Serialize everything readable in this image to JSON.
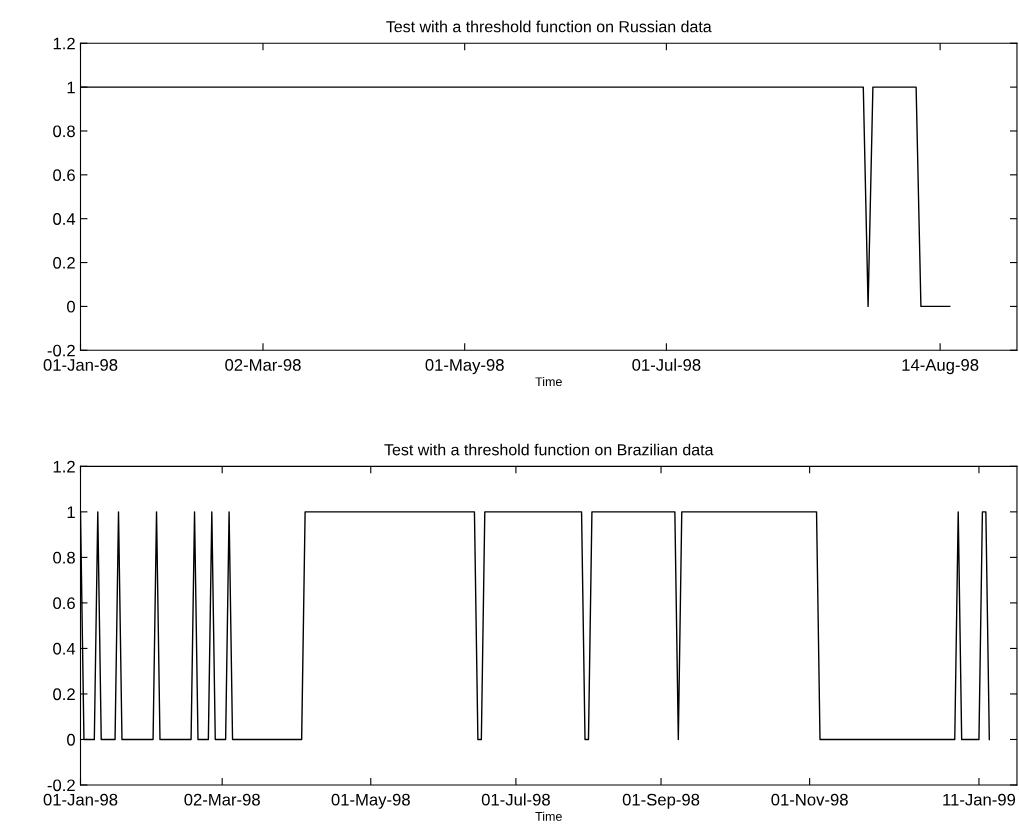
{
  "chart_data": [
    {
      "type": "line",
      "title": "Test with a threshold function on Russian data",
      "xlabel": "Time",
      "categories": [
        "01-Jan-98",
        null,
        null,
        null,
        null,
        null,
        null,
        null,
        null,
        null,
        null,
        null,
        null,
        null,
        null,
        null,
        null,
        null,
        null,
        null,
        null,
        null,
        null,
        null,
        null,
        null,
        null,
        null,
        null,
        null,
        null,
        null,
        null,
        null,
        null,
        null,
        null,
        null,
        "02-Mar-98",
        null,
        null,
        null,
        null,
        null,
        null,
        null,
        null,
        null,
        null,
        null,
        null,
        null,
        null,
        null,
        null,
        null,
        null,
        null,
        null,
        null,
        null,
        null,
        null,
        null,
        null,
        null,
        null,
        null,
        null,
        null,
        null,
        null,
        null,
        null,
        null,
        null,
        null,
        null,
        null,
        null,
        "01-May-98",
        null,
        null,
        null,
        null,
        null,
        null,
        null,
        null,
        null,
        null,
        null,
        null,
        null,
        null,
        null,
        null,
        null,
        null,
        null,
        null,
        null,
        null,
        null,
        null,
        null,
        null,
        null,
        null,
        null,
        null,
        null,
        null,
        null,
        null,
        null,
        null,
        null,
        null,
        null,
        null,
        null,
        "01-Jul-98",
        null,
        null,
        null,
        null,
        null,
        null,
        null,
        null,
        null,
        null,
        null,
        null,
        null,
        null,
        null,
        null,
        null,
        null,
        null,
        null,
        null,
        null,
        null,
        null,
        null,
        null,
        null,
        null,
        null,
        null,
        null,
        null,
        null,
        null,
        null,
        null,
        null,
        null,
        null,
        null,
        null,
        null,
        null,
        null,
        null,
        null,
        null,
        null,
        null,
        null,
        null,
        null,
        null,
        null,
        null,
        null,
        "14-Aug-98",
        null,
        null,
        null,
        null,
        null,
        null,
        null,
        null,
        null,
        null,
        null,
        null,
        null,
        null,
        null,
        null
      ],
      "series": [
        {
          "color": "#000000",
          "values": [
            1,
            1,
            1,
            1,
            1,
            1,
            1,
            1,
            1,
            1,
            1,
            1,
            1,
            1,
            1,
            1,
            1,
            1,
            1,
            1,
            1,
            1,
            1,
            1,
            1,
            1,
            1,
            1,
            1,
            1,
            1,
            1,
            1,
            1,
            1,
            1,
            1,
            1,
            1,
            1,
            1,
            1,
            1,
            1,
            1,
            1,
            1,
            1,
            1,
            1,
            1,
            1,
            1,
            1,
            1,
            1,
            1,
            1,
            1,
            1,
            1,
            1,
            1,
            1,
            1,
            1,
            1,
            1,
            1,
            1,
            1,
            1,
            1,
            1,
            1,
            1,
            1,
            1,
            1,
            1,
            1,
            1,
            1,
            1,
            1,
            1,
            1,
            1,
            1,
            1,
            1,
            1,
            1,
            1,
            1,
            1,
            1,
            1,
            1,
            1,
            1,
            1,
            1,
            1,
            1,
            1,
            1,
            1,
            1,
            1,
            1,
            1,
            1,
            1,
            1,
            1,
            1,
            1,
            1,
            1,
            1,
            1,
            1,
            1,
            1,
            1,
            1,
            1,
            1,
            1,
            1,
            1,
            1,
            1,
            1,
            1,
            1,
            1,
            1,
            1,
            1,
            1,
            1,
            1,
            1,
            1,
            1,
            1,
            1,
            1,
            1,
            1,
            1,
            1,
            1,
            1,
            1,
            1,
            1,
            1,
            1,
            1,
            1,
            1,
            0,
            1,
            1,
            1,
            1,
            1,
            1,
            1,
            1,
            1,
            1,
            0,
            0,
            0,
            0,
            0,
            0,
            0,
            null,
            null,
            null,
            null,
            null,
            null,
            null,
            null,
            null,
            null,
            null,
            null,
            null,
            null
          ]
        }
      ],
      "ylim": [
        -0.2,
        1.2
      ],
      "yticks": [
        -0.2,
        0,
        0.2,
        0.4,
        0.6,
        0.8,
        1,
        1.2
      ],
      "grid": false,
      "line_style": "solid"
    },
    {
      "type": "line",
      "title": "Test with a threshold function on Brazilian data",
      "xlabel": "Time",
      "categories": [
        "01-Jan-98",
        null,
        null,
        null,
        null,
        null,
        null,
        null,
        null,
        null,
        null,
        null,
        null,
        null,
        null,
        null,
        null,
        null,
        null,
        null,
        null,
        null,
        null,
        null,
        null,
        null,
        null,
        null,
        null,
        null,
        null,
        null,
        null,
        null,
        null,
        null,
        null,
        null,
        null,
        null,
        null,
        "02-Mar-98",
        null,
        null,
        null,
        null,
        null,
        null,
        null,
        null,
        null,
        null,
        null,
        null,
        null,
        null,
        null,
        null,
        null,
        null,
        null,
        null,
        null,
        null,
        null,
        null,
        null,
        null,
        null,
        null,
        null,
        null,
        null,
        null,
        null,
        null,
        null,
        null,
        null,
        null,
        null,
        null,
        null,
        null,
        "01-May-98",
        null,
        null,
        null,
        null,
        null,
        null,
        null,
        null,
        null,
        null,
        null,
        null,
        null,
        null,
        null,
        null,
        null,
        null,
        null,
        null,
        null,
        null,
        null,
        null,
        null,
        null,
        null,
        null,
        null,
        null,
        null,
        null,
        null,
        null,
        null,
        null,
        null,
        null,
        null,
        null,
        null,
        "01-Jul-98",
        null,
        null,
        null,
        null,
        null,
        null,
        null,
        null,
        null,
        null,
        null,
        null,
        null,
        null,
        null,
        null,
        null,
        null,
        null,
        null,
        null,
        null,
        null,
        null,
        null,
        null,
        null,
        null,
        null,
        null,
        null,
        null,
        null,
        null,
        null,
        null,
        null,
        null,
        null,
        null,
        null,
        "01-Sep-98",
        null,
        null,
        null,
        null,
        null,
        null,
        null,
        null,
        null,
        null,
        null,
        null,
        null,
        null,
        null,
        null,
        null,
        null,
        null,
        null,
        null,
        null,
        null,
        null,
        null,
        null,
        null,
        null,
        null,
        null,
        null,
        null,
        null,
        null,
        null,
        null,
        null,
        null,
        null,
        null,
        null,
        null,
        "01-Nov-98",
        null,
        null,
        null,
        null,
        null,
        null,
        null,
        null,
        null,
        null,
        null,
        null,
        null,
        null,
        null,
        null,
        null,
        null,
        null,
        null,
        null,
        null,
        null,
        null,
        null,
        null,
        null,
        null,
        null,
        null,
        null,
        null,
        null,
        null,
        null,
        null,
        null,
        null,
        null,
        null,
        null,
        null,
        null,
        null,
        null,
        null,
        null,
        null,
        "11-Jan-99",
        null,
        null,
        null,
        null,
        null,
        null,
        null,
        null,
        null,
        null,
        null
      ],
      "series": [
        {
          "color": "#000000",
          "values": [
            1,
            0,
            0,
            0,
            0,
            1,
            0,
            0,
            0,
            0,
            0,
            1,
            0,
            0,
            0,
            0,
            0,
            0,
            0,
            0,
            0,
            0,
            1,
            0,
            0,
            0,
            0,
            0,
            0,
            0,
            0,
            0,
            0,
            1,
            0,
            0,
            0,
            0,
            1,
            0,
            0,
            0,
            0,
            1,
            0,
            0,
            0,
            0,
            0,
            0,
            0,
            0,
            0,
            0,
            0,
            0,
            0,
            0,
            0,
            0,
            0,
            0,
            0,
            0,
            0,
            1,
            1,
            1,
            1,
            1,
            1,
            1,
            1,
            1,
            1,
            1,
            1,
            1,
            1,
            1,
            1,
            1,
            1,
            1,
            1,
            1,
            1,
            1,
            1,
            1,
            1,
            1,
            1,
            1,
            1,
            1,
            1,
            1,
            1,
            1,
            1,
            1,
            1,
            1,
            1,
            1,
            1,
            1,
            1,
            1,
            1,
            1,
            1,
            1,
            1,
            0,
            0,
            1,
            1,
            1,
            1,
            1,
            1,
            1,
            1,
            1,
            1,
            1,
            1,
            1,
            1,
            1,
            1,
            1,
            1,
            1,
            1,
            1,
            1,
            1,
            1,
            1,
            1,
            1,
            1,
            1,
            0,
            0,
            1,
            1,
            1,
            1,
            1,
            1,
            1,
            1,
            1,
            1,
            1,
            1,
            1,
            1,
            1,
            1,
            1,
            1,
            1,
            1,
            1,
            1,
            1,
            1,
            1,
            0,
            1,
            1,
            1,
            1,
            1,
            1,
            1,
            1,
            1,
            1,
            1,
            1,
            1,
            1,
            1,
            1,
            1,
            1,
            1,
            1,
            1,
            1,
            1,
            1,
            1,
            1,
            1,
            1,
            1,
            1,
            1,
            1,
            1,
            1,
            1,
            1,
            1,
            1,
            1,
            1,
            0,
            0,
            0,
            0,
            0,
            0,
            0,
            0,
            0,
            0,
            0,
            0,
            0,
            0,
            0,
            0,
            0,
            0,
            0,
            0,
            0,
            0,
            0,
            0,
            0,
            0,
            0,
            0,
            0,
            0,
            0,
            0,
            0,
            0,
            0,
            0,
            0,
            0,
            0,
            0,
            1,
            0,
            0,
            0,
            0,
            0,
            0,
            1,
            1,
            0,
            null,
            null,
            null,
            null,
            null,
            null,
            null,
            null
          ]
        }
      ],
      "ylim": [
        -0.2,
        1.2
      ],
      "yticks": [
        -0.2,
        0,
        0.2,
        0.4,
        0.6,
        0.8,
        1,
        1.2
      ],
      "grid": false,
      "line_style": "solid"
    }
  ]
}
